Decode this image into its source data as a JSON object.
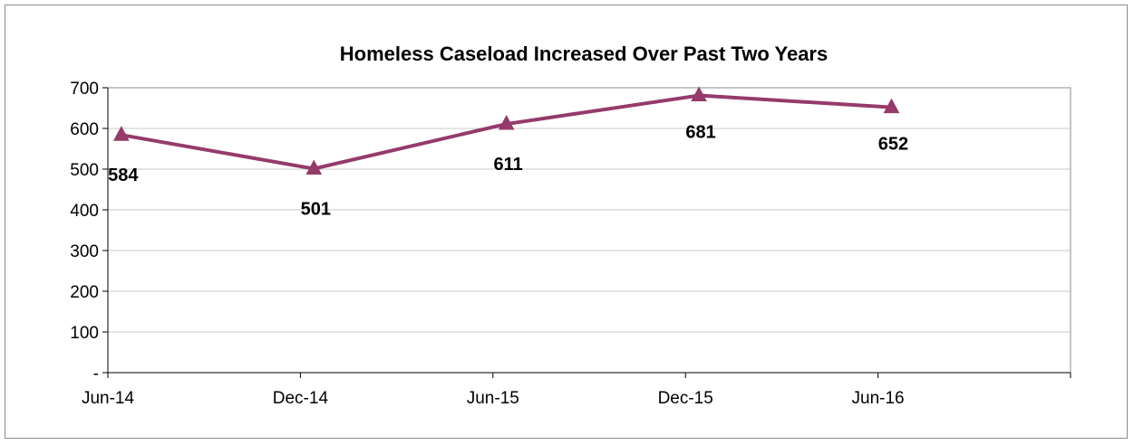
{
  "chart_data": {
    "type": "line",
    "title": "Homeless Caseload Increased Over Past Two Years",
    "xlabel": "",
    "ylabel": "",
    "categories": [
      "Jun-14",
      "Dec-14",
      "Jun-15",
      "Dec-15",
      "Jun-16"
    ],
    "series": [
      {
        "values": [
          584,
          501,
          611,
          681,
          652
        ],
        "color": "#953a6b",
        "marker": "triangle"
      }
    ],
    "data_labels": [
      "584",
      "501",
      "611",
      "681",
      "652"
    ],
    "ylim": [
      0,
      700
    ],
    "yticks": [
      0,
      100,
      200,
      300,
      400,
      500,
      600,
      700
    ],
    "ytick_labels": [
      "-",
      "100",
      "200",
      "300",
      "400",
      "500",
      "600",
      "700"
    ],
    "grid": true,
    "legend": "none"
  }
}
